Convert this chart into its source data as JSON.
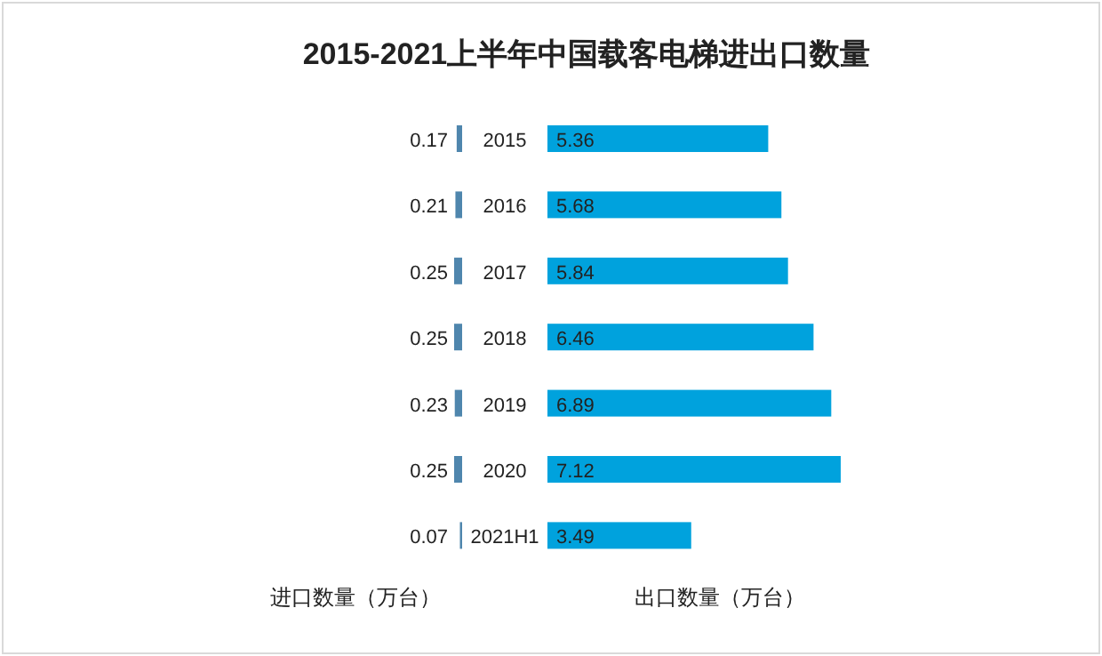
{
  "chart_data": [
    {
      "type": "bar",
      "orientation": "horizontal",
      "title": "2015-2021上半年中国载客电梯进出口数量",
      "xlabel": "进口数量（万台）",
      "categories": [
        "2015",
        "2016",
        "2017",
        "2018",
        "2019",
        "2020",
        "2021H1"
      ],
      "color": "#4f86ad",
      "values": [
        0.17,
        0.21,
        0.25,
        0.25,
        0.23,
        0.25,
        0.07
      ],
      "data_labels": true
    },
    {
      "type": "bar",
      "orientation": "horizontal",
      "xlabel": "出口数量（万台）",
      "categories": [
        "2015",
        "2016",
        "2017",
        "2018",
        "2019",
        "2020",
        "2021H1"
      ],
      "tick_labels": false,
      "color": "#00a2dd",
      "values": [
        5.36,
        5.68,
        5.84,
        6.46,
        6.89,
        7.12,
        3.49
      ],
      "data_labels": true
    }
  ]
}
